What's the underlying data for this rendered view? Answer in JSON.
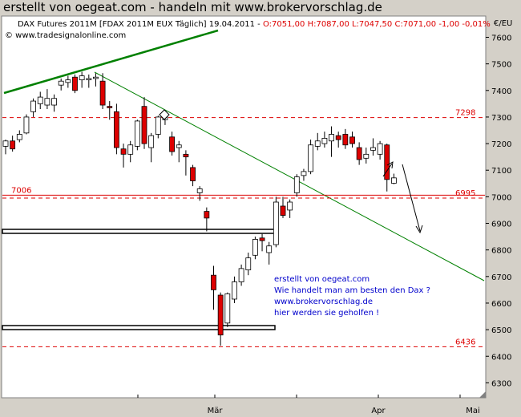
{
  "header": {
    "title": "erstellt von oegeat.com - handeln mit www.brokervorschlag.de",
    "info_prefix": "DAX Futures 2011M [FDAX 2011M EUX  Täglich] 19.04.2011 - ",
    "info_values": "O:7051,00 H:7087,00 L:7047,50 C:7071,00 -1,00 -0,01%",
    "source": "© www.tradesignalonline.com"
  },
  "colors": {
    "background": "#d4d0c8",
    "plot_bg": "#ffffff",
    "up_candle": "#ffffff",
    "down_candle": "#dd0000",
    "level_line": "#dd0000",
    "trend_line": "#008000",
    "annotation_text": "#0000cc"
  },
  "chart_data": {
    "type": "candlestick",
    "ylabel": "€/EU",
    "ylim": [
      6230,
      7660
    ],
    "y_ticks": [
      6300,
      6400,
      6500,
      6600,
      6700,
      6800,
      6900,
      7000,
      7100,
      7200,
      7300,
      7400,
      7500,
      7600
    ],
    "y_tick_labels": [
      "6300",
      "6400",
      "6500",
      "6600",
      "6700",
      "6800",
      "6900",
      "7000",
      "7100",
      "7200",
      "7300",
      "7400",
      "7500",
      "7600"
    ],
    "x_labels": [
      "Mär",
      "Apr",
      "Mai"
    ],
    "candles": [
      {
        "o": 7190,
        "h": 7215,
        "l": 7160,
        "c": 7210
      },
      {
        "o": 7210,
        "h": 7230,
        "l": 7170,
        "c": 7180
      },
      {
        "o": 7215,
        "h": 7250,
        "l": 7205,
        "c": 7235
      },
      {
        "o": 7240,
        "h": 7310,
        "l": 7235,
        "c": 7300
      },
      {
        "o": 7320,
        "h": 7370,
        "l": 7300,
        "c": 7360
      },
      {
        "o": 7350,
        "h": 7395,
        "l": 7330,
        "c": 7375
      },
      {
        "o": 7345,
        "h": 7405,
        "l": 7330,
        "c": 7370
      },
      {
        "o": 7345,
        "h": 7385,
        "l": 7320,
        "c": 7370
      },
      {
        "o": 7420,
        "h": 7445,
        "l": 7400,
        "c": 7435
      },
      {
        "o": 7430,
        "h": 7455,
        "l": 7410,
        "c": 7440
      },
      {
        "o": 7450,
        "h": 7460,
        "l": 7390,
        "c": 7400
      },
      {
        "o": 7440,
        "h": 7470,
        "l": 7410,
        "c": 7455
      },
      {
        "o": 7440,
        "h": 7460,
        "l": 7410,
        "c": 7445
      },
      {
        "o": 7445,
        "h": 7465,
        "l": 7415,
        "c": 7450
      },
      {
        "o": 7435,
        "h": 7465,
        "l": 7330,
        "c": 7345
      },
      {
        "o": 7340,
        "h": 7360,
        "l": 7290,
        "c": 7335
      },
      {
        "o": 7320,
        "h": 7350,
        "l": 7160,
        "c": 7185
      },
      {
        "o": 7180,
        "h": 7200,
        "l": 7110,
        "c": 7160
      },
      {
        "o": 7160,
        "h": 7210,
        "l": 7130,
        "c": 7195
      },
      {
        "o": 7190,
        "h": 7290,
        "l": 7175,
        "c": 7285
      },
      {
        "o": 7340,
        "h": 7375,
        "l": 7180,
        "c": 7200
      },
      {
        "o": 7185,
        "h": 7240,
        "l": 7130,
        "c": 7230
      },
      {
        "o": 7235,
        "h": 7305,
        "l": 7220,
        "c": 7300
      },
      {
        "o": 7290,
        "h": 7320,
        "l": 7270,
        "c": 7305
      },
      {
        "o": 7225,
        "h": 7245,
        "l": 7155,
        "c": 7170
      },
      {
        "o": 7185,
        "h": 7210,
        "l": 7130,
        "c": 7195
      },
      {
        "o": 7160,
        "h": 7175,
        "l": 7080,
        "c": 7150
      },
      {
        "o": 7110,
        "h": 7120,
        "l": 7040,
        "c": 7060
      },
      {
        "o": 7015,
        "h": 7040,
        "l": 6985,
        "c": 7030
      },
      {
        "o": 6945,
        "h": 6960,
        "l": 6870,
        "c": 6920
      },
      {
        "o": 6705,
        "h": 6740,
        "l": 6575,
        "c": 6650
      },
      {
        "o": 6630,
        "h": 6640,
        "l": 6440,
        "c": 6480
      },
      {
        "o": 6525,
        "h": 6640,
        "l": 6510,
        "c": 6635
      },
      {
        "o": 6615,
        "h": 6700,
        "l": 6600,
        "c": 6680
      },
      {
        "o": 6680,
        "h": 6745,
        "l": 6665,
        "c": 6730
      },
      {
        "o": 6725,
        "h": 6790,
        "l": 6705,
        "c": 6770
      },
      {
        "o": 6780,
        "h": 6850,
        "l": 6765,
        "c": 6840
      },
      {
        "o": 6845,
        "h": 6860,
        "l": 6795,
        "c": 6835
      },
      {
        "o": 6790,
        "h": 6830,
        "l": 6745,
        "c": 6815
      },
      {
        "o": 6820,
        "h": 7000,
        "l": 6810,
        "c": 6980
      },
      {
        "o": 6965,
        "h": 7000,
        "l": 6920,
        "c": 6930
      },
      {
        "o": 6950,
        "h": 6990,
        "l": 6920,
        "c": 6980
      },
      {
        "o": 7015,
        "h": 7085,
        "l": 7000,
        "c": 7075
      },
      {
        "o": 7080,
        "h": 7105,
        "l": 7060,
        "c": 7095
      },
      {
        "o": 7095,
        "h": 7215,
        "l": 7085,
        "c": 7195
      },
      {
        "o": 7190,
        "h": 7240,
        "l": 7175,
        "c": 7210
      },
      {
        "o": 7200,
        "h": 7245,
        "l": 7185,
        "c": 7220
      },
      {
        "o": 7210,
        "h": 7265,
        "l": 7150,
        "c": 7235
      },
      {
        "o": 7230,
        "h": 7245,
        "l": 7185,
        "c": 7215
      },
      {
        "o": 7235,
        "h": 7255,
        "l": 7180,
        "c": 7195
      },
      {
        "o": 7225,
        "h": 7245,
        "l": 7185,
        "c": 7200
      },
      {
        "o": 7185,
        "h": 7205,
        "l": 7120,
        "c": 7140
      },
      {
        "o": 7145,
        "h": 7185,
        "l": 7125,
        "c": 7160
      },
      {
        "o": 7175,
        "h": 7220,
        "l": 7155,
        "c": 7185
      },
      {
        "o": 7160,
        "h": 7210,
        "l": 7140,
        "c": 7200
      },
      {
        "o": 7195,
        "h": 7200,
        "l": 7020,
        "c": 7065
      },
      {
        "o": 7051,
        "h": 7087,
        "l": 7047.5,
        "c": 7071
      }
    ],
    "horizontal_levels": [
      {
        "value": 7298,
        "label": "7298",
        "label_side": "right",
        "style": "dashed"
      },
      {
        "value": 7006,
        "label": "7006",
        "label_side": "left",
        "style": "solid"
      },
      {
        "value": 6995,
        "label": "6995",
        "label_side": "right",
        "style": "dashed"
      },
      {
        "value": 6436,
        "label": "6436",
        "label_side": "right",
        "style": "dashed"
      }
    ],
    "annotation": [
      "erstellt von oegeat.com",
      "Wie handelt man am besten den Dax ?",
      "www.brokervorschlag.de",
      "hier werden sie geholfen !"
    ]
  }
}
